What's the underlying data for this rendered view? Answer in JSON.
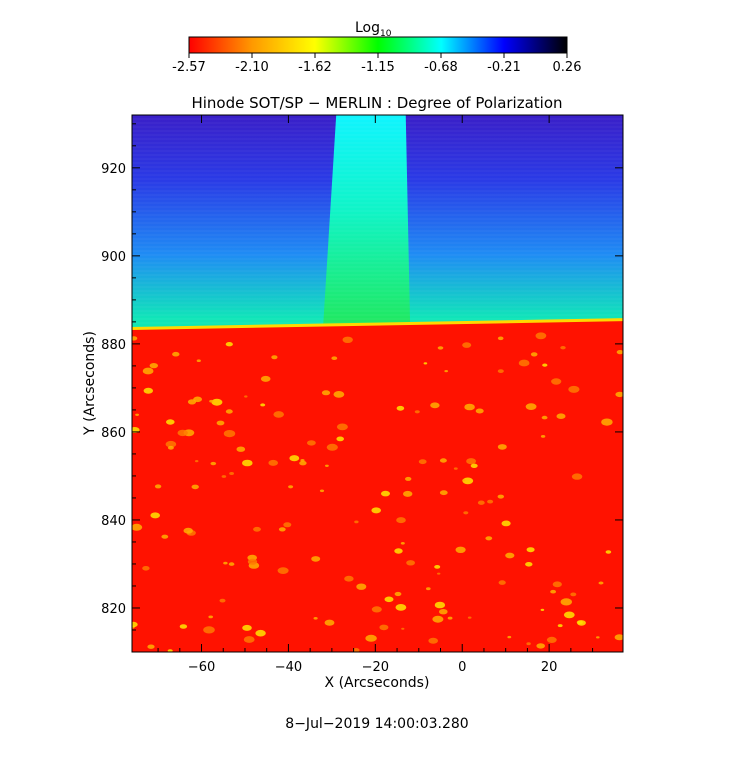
{
  "colorbar": {
    "title_main": "Log",
    "title_sub": "10",
    "ticks": [
      "-2.57",
      "-2.10",
      "-1.62",
      "-1.15",
      "-0.68",
      "-0.21",
      "0.26"
    ],
    "colormap": [
      "#ff0000",
      "#ff9900",
      "#ffff00",
      "#00ff00",
      "#00ffff",
      "#0000ff",
      "#000000"
    ]
  },
  "chart_data": {
    "type": "heatmap",
    "title": "Hinode SOT/SP − MERLIN : Degree of Polarization",
    "xlabel": "X (Arcseconds)",
    "ylabel": "Y (Arcseconds)",
    "xlim": [
      -76,
      37
    ],
    "ylim": [
      810,
      932
    ],
    "xticks": [
      -60,
      -40,
      -20,
      0,
      20
    ],
    "yticks": [
      820,
      840,
      860,
      880,
      900,
      920
    ],
    "value_scale": "log10",
    "value_range": [
      -2.57,
      0.26
    ],
    "limb_y": [
      883.5,
      885.5
    ],
    "bright_column_x": [
      -29,
      -13
    ]
  },
  "timestamp": "8−Jul−2019 14:00:03.280"
}
